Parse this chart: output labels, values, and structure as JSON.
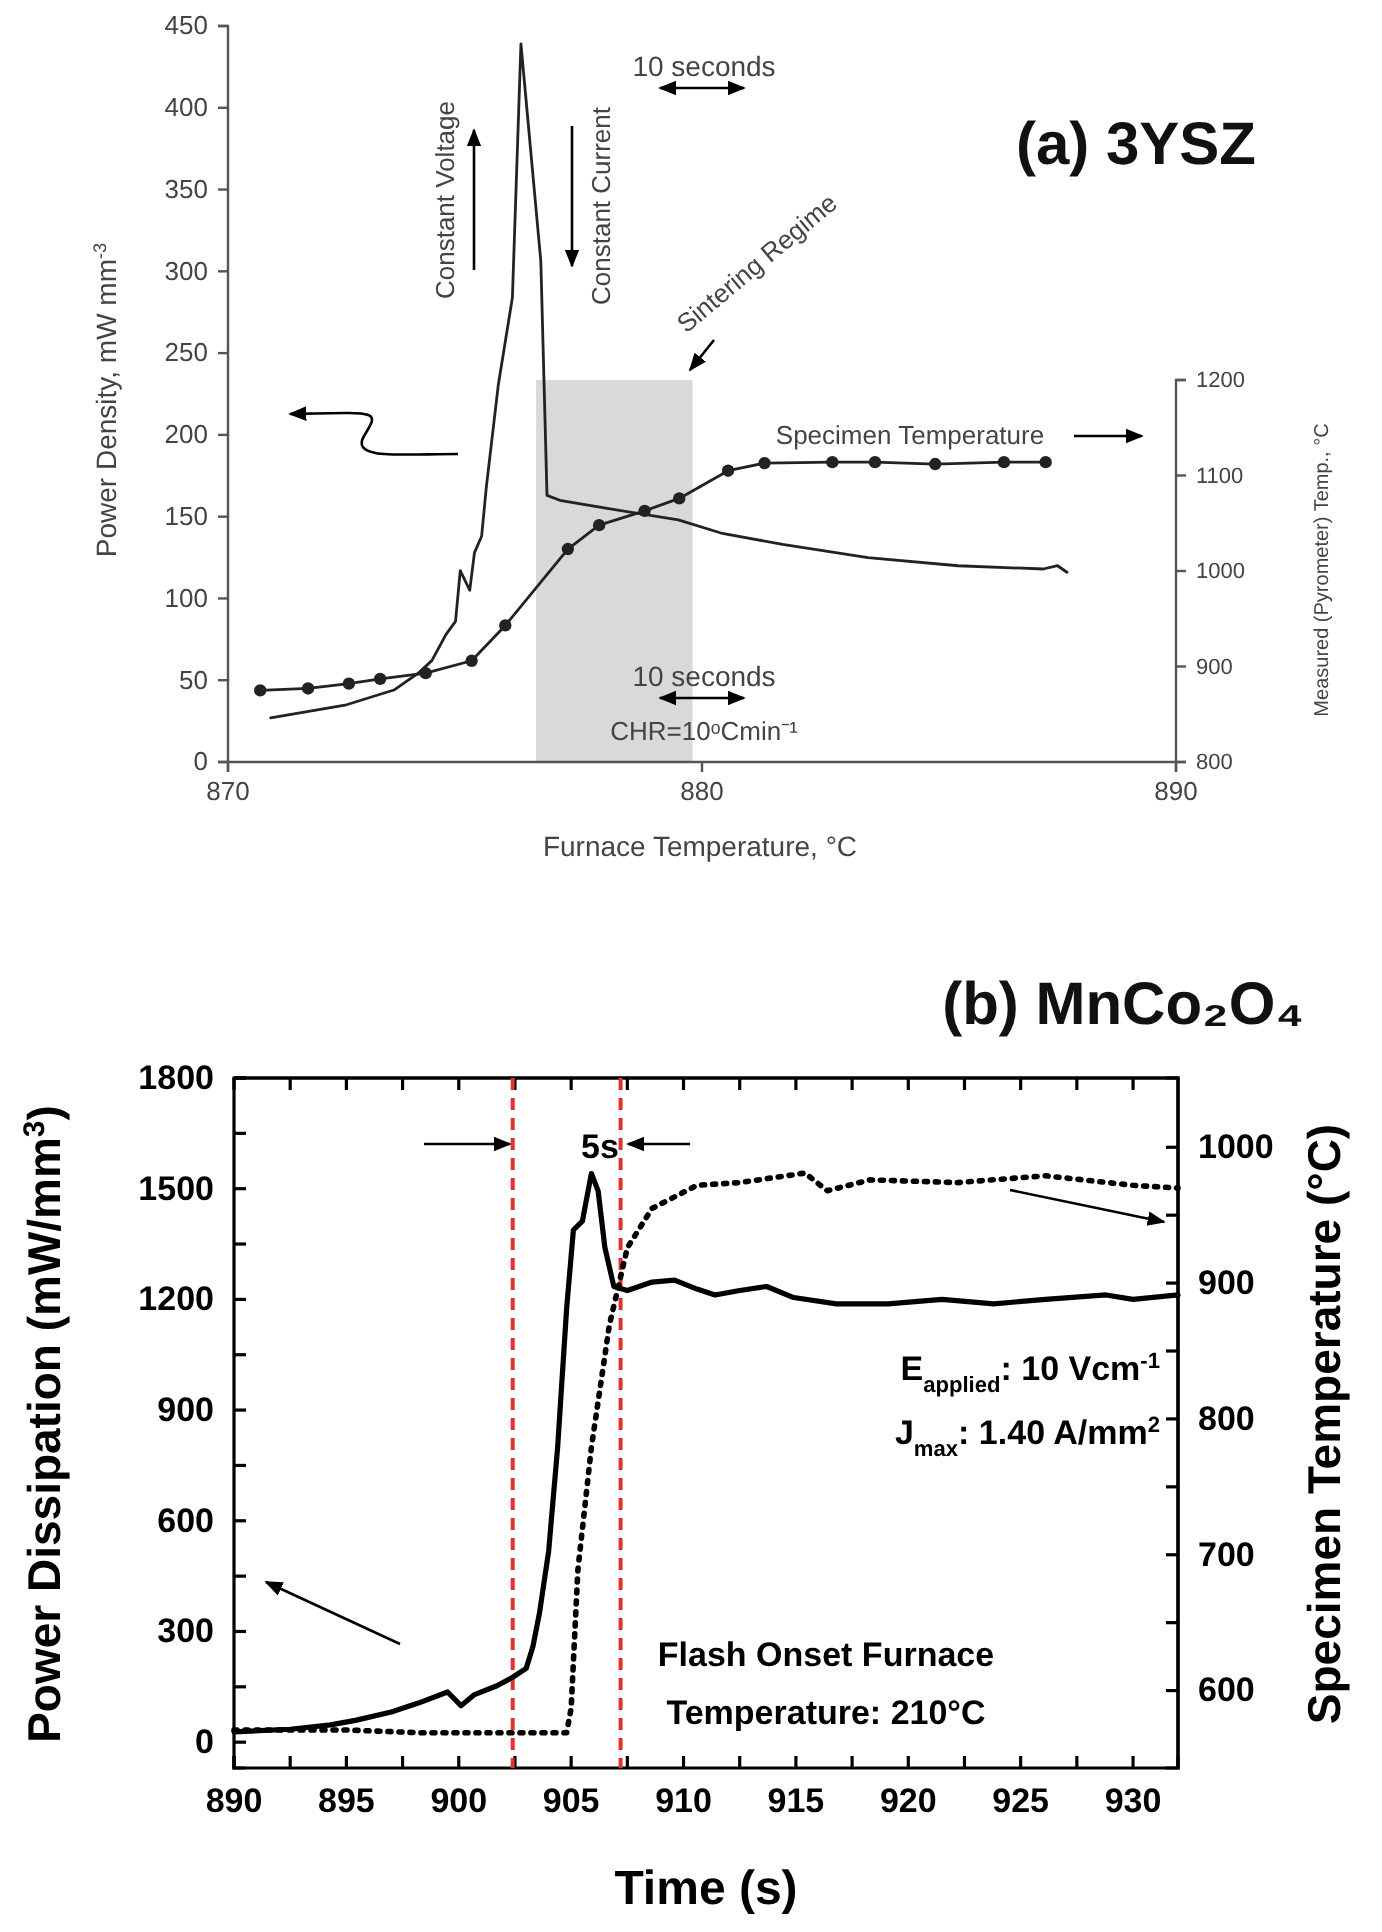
{
  "chart_data": [
    {
      "type": "line",
      "title": "(a) 3YSZ",
      "xlabel": "Furnace Temperature, °C",
      "ylabel": "Power Density, mW mm$^{-3}$",
      "y2label": "Measured (Pyrometer) Temp., °C",
      "xlim": [
        870,
        890
      ],
      "xticks": [
        870,
        880,
        890
      ],
      "ylim": [
        0,
        450
      ],
      "yticks": [
        0,
        50,
        100,
        150,
        200,
        250,
        300,
        350,
        400,
        450
      ],
      "y2lim": [
        800,
        1200
      ],
      "y2ticks": [
        800,
        900,
        1000,
        1100,
        1200
      ],
      "bands": [
        {
          "axis": "x",
          "from": 876.5,
          "to": 879.8,
          "label": "Sintering Regime",
          "color": "#d9d9d9"
        }
      ],
      "annotations": [
        "10 seconds",
        "Constant Voltage",
        "Constant Current",
        "10 seconds",
        "CHR=10ᵒCmin⁻¹"
      ],
      "series": [
        {
          "color": "#222222",
          "x": [
            870.9,
            872.5,
            873.5,
            874.0,
            874.3,
            874.6,
            874.8,
            874.9,
            875.1,
            875.2,
            875.35,
            875.45,
            875.7,
            876.0,
            876.18,
            876.6,
            876.73,
            877.0,
            878.0,
            879.5,
            880.4,
            881.7,
            883.5,
            885.4,
            887.2,
            887.5,
            887.7
          ],
          "values": [
            27,
            35,
            44,
            54,
            62,
            78,
            86,
            117,
            105,
            128,
            138,
            168,
            230,
            284,
            439,
            306,
            163,
            160,
            155,
            148,
            140,
            133,
            125,
            120,
            118,
            120,
            116
          ]
        },
        {
          "name": "Specimen Temperature",
          "axis": "y2",
          "marker": "circle",
          "color": "#222222",
          "x": [
            870.68,
            871.69,
            872.55,
            873.21,
            874.17,
            875.14,
            875.85,
            877.17,
            877.83,
            878.79,
            879.52,
            880.55,
            881.32,
            882.75,
            883.65,
            884.92,
            886.37,
            887.25
          ],
          "values": [
            875,
            877,
            882,
            887,
            893,
            906,
            943,
            1023,
            1048,
            1063,
            1076,
            1105,
            1113,
            1114,
            1114,
            1112,
            1114,
            1114
          ]
        }
      ]
    },
    {
      "type": "line",
      "title": "(b) MnCo₂O₄",
      "xlabel": "Time (s)",
      "ylabel": "Power Dissipation (mW/mm$^{3}$)",
      "y2label": "Specimen Temperature (°C)",
      "xlim": [
        890,
        932
      ],
      "xticks": [
        890,
        {
          "value": 892.5,
          "label": null
        },
        895,
        {
          "value": 897.5,
          "label": null
        },
        900,
        {
          "value": 902.5,
          "label": null
        },
        905,
        {
          "value": 907.5,
          "label": null
        },
        910,
        {
          "value": 912.5,
          "label": null
        },
        915,
        {
          "value": 917.5,
          "label": null
        },
        920,
        {
          "value": 922.5,
          "label": null
        },
        925,
        {
          "value": 927.5,
          "label": null
        },
        930
      ],
      "ylim": [
        -70,
        1800
      ],
      "yticks": [
        0,
        {
          "value": 150,
          "label": null
        },
        300,
        {
          "value": 450,
          "label": null
        },
        600,
        {
          "value": 750,
          "label": null
        },
        900,
        {
          "value": 1050,
          "label": null
        },
        1200,
        {
          "value": 1350,
          "label": null
        },
        1500,
        {
          "value": 1650,
          "label": null
        },
        1800
      ],
      "y2lim": [
        543,
        1051
      ],
      "y2ticks": [
        600,
        {
          "value": 650,
          "label": null
        },
        700,
        {
          "value": 750,
          "label": null
        },
        800,
        {
          "value": 850,
          "label": null
        },
        900,
        {
          "value": 950,
          "label": null
        },
        1000
      ],
      "ref_lines": [
        {
          "axis": "x",
          "value": 902.4,
          "color": "#e0322f",
          "line_style": "dashed"
        },
        {
          "axis": "x",
          "value": 907.2,
          "color": "#e0322f",
          "line_style": "dashed"
        }
      ],
      "annotations": [
        "5s",
        "E$_{applied}$: 10 Vcm$^{-1}$",
        "J$_{max}$: 1.40 A/mm$^{2}$",
        "Flash Onset Furnace Temperature: 210°C"
      ],
      "series": [
        {
          "color": "#000000",
          "x": [
            890,
            892.5,
            894.3,
            895.4,
            897.0,
            898.2,
            899.5,
            900.1,
            900.7,
            901.7,
            902.4,
            903.0,
            903.3,
            903.6,
            904.0,
            904.4,
            904.8,
            905.1,
            905.5,
            905.9,
            906.2,
            906.5,
            906.9,
            907.5,
            908.6,
            909.6,
            910.6,
            911.4,
            912.5,
            913.7,
            914.9,
            916.8,
            919.1,
            921.5,
            923.8,
            926.1,
            928.8,
            930.0,
            932.0
          ],
          "values": [
            28,
            35,
            47,
            59,
            82,
            106,
            136,
            99,
            129,
            153,
            176,
            200,
            259,
            353,
            518,
            800,
            1176,
            1388,
            1412,
            1541,
            1494,
            1341,
            1235,
            1224,
            1247,
            1252,
            1228,
            1212,
            1224,
            1235,
            1205,
            1188,
            1188,
            1200,
            1188,
            1200,
            1212,
            1200,
            1212
          ]
        },
        {
          "axis": "y2",
          "line_style": "dotted",
          "color": "#000000",
          "x": [
            890,
            895,
            898.2,
            904.8,
            905.0,
            905.3,
            905.9,
            906.7,
            907.5,
            908.6,
            910.6,
            912.5,
            915.4,
            916.4,
            918.3,
            922.2,
            926.1,
            930.0,
            932.0
          ],
          "values": [
            571,
            571,
            569,
            569,
            587,
            689,
            779,
            869,
            926,
            955,
            972,
            974,
            981,
            968,
            976,
            974,
            979,
            972,
            970
          ]
        }
      ]
    }
  ]
}
